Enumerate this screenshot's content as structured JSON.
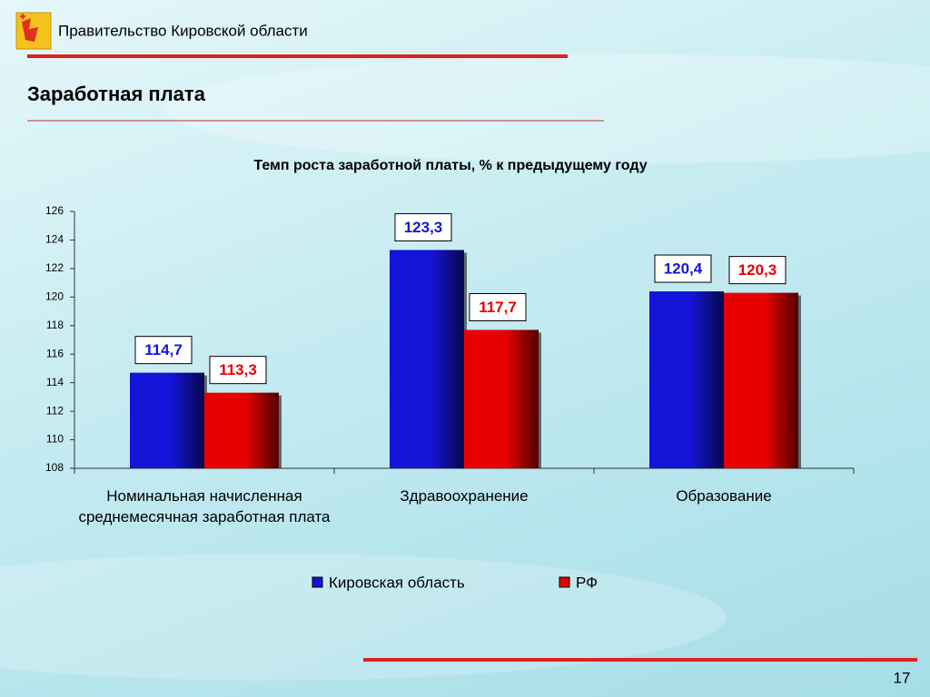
{
  "header": {
    "organization": "Правительство Кировской области",
    "title": "Заработная плата"
  },
  "page_number": "17",
  "chart_data": {
    "type": "bar",
    "title": "Темп роста заработной платы, % к предыдущему году",
    "categories": [
      "Номинальная начисленная среднемесячная заработная плата",
      "Здравоохранение",
      "Образование"
    ],
    "series": [
      {
        "name": "Кировская область",
        "color": "#1414d8",
        "values": [
          114.7,
          123.3,
          120.4
        ],
        "value_labels": [
          "114,7",
          "123,3",
          "120,4"
        ]
      },
      {
        "name": "РФ",
        "color": "#e80000",
        "values": [
          113.3,
          117.7,
          120.3
        ],
        "value_labels": [
          "113,3",
          "117,7",
          "120,3"
        ]
      }
    ],
    "ylim": [
      108,
      126
    ],
    "yticks": [
      108,
      110,
      112,
      114,
      116,
      118,
      120,
      122,
      124,
      126
    ],
    "legend": "bottom"
  }
}
